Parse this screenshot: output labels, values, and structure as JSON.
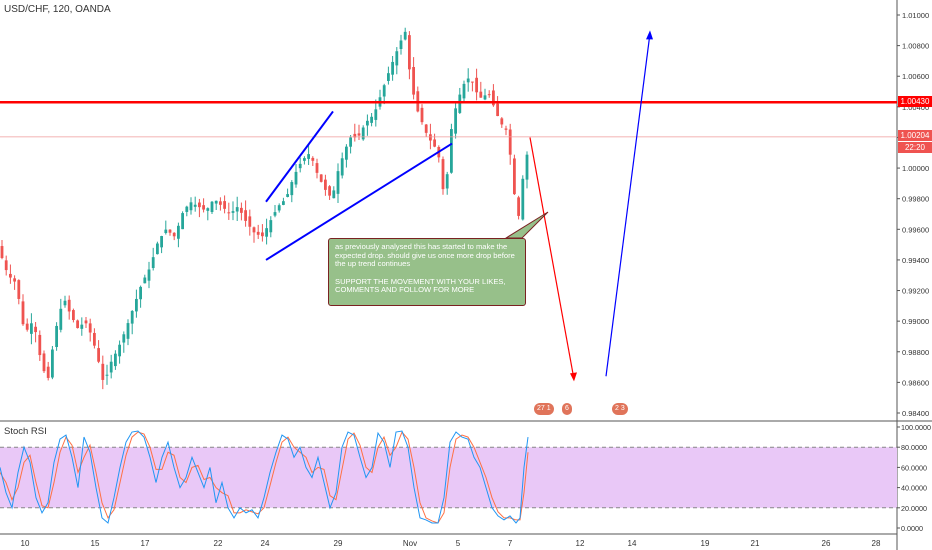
{
  "header": {
    "title": "USD/CHF, 120, OANDA"
  },
  "note": {
    "text1": "as previously analysed this has started to make the expected drop. should give us once more drop before the up trend continues",
    "text2": "SUPPORT THE MOVEMENT WITH YOUR LIKES, COMMENTS AND FOLLOW FOR MORE"
  },
  "events": [
    "27 1",
    "6",
    "2 3"
  ],
  "price_tags": {
    "resistance": "1.00430",
    "current": "1.00204",
    "countdown": "22:20"
  },
  "rsi": {
    "title": "Stoch RSI"
  },
  "colors": {
    "up": "#26a69a",
    "down": "#ef5350",
    "resistance": "#ff0000",
    "trend": "#0000ff",
    "projection_down": "#ff0000",
    "projection_up": "#0000ff",
    "rsi_band": "#e9c8f7",
    "k_line": "#2196f3",
    "d_line": "#ff7043"
  },
  "chart_data": [
    {
      "type": "candlestick",
      "title": "USD/CHF, 120, OANDA",
      "x_tick_labels": [
        "10",
        "15",
        "17",
        "22",
        "24",
        "29",
        "Nov",
        "5",
        "7",
        "12",
        "14",
        "19",
        "21",
        "26",
        "28"
      ],
      "y_tick_labels": [
        "1.01000",
        "1.00800",
        "1.00600",
        "1.00400",
        "1.00200",
        "1.00000",
        "0.99800",
        "0.99600",
        "0.99400",
        "0.99200",
        "0.99000",
        "0.98800",
        "0.98600",
        "0.98400"
      ],
      "ylim": [
        0.9834,
        1.0109
      ],
      "resistance_level": 1.0043,
      "current_price": 1.00204,
      "price_path": [
        [
          0,
          0.9945
        ],
        [
          8,
          0.993
        ],
        [
          16,
          0.9925
        ],
        [
          20,
          0.991
        ],
        [
          25,
          0.989
        ],
        [
          30,
          0.99
        ],
        [
          35,
          0.9895
        ],
        [
          42,
          0.987
        ],
        [
          48,
          0.9862
        ],
        [
          52,
          0.988
        ],
        [
          58,
          0.9902
        ],
        [
          64,
          0.9915
        ],
        [
          70,
          0.9905
        ],
        [
          78,
          0.9895
        ],
        [
          85,
          0.99
        ],
        [
          92,
          0.989
        ],
        [
          100,
          0.987
        ],
        [
          104,
          0.9858
        ],
        [
          110,
          0.9872
        ],
        [
          118,
          0.9882
        ],
        [
          126,
          0.9895
        ],
        [
          134,
          0.991
        ],
        [
          142,
          0.9925
        ],
        [
          150,
          0.9935
        ],
        [
          158,
          0.9952
        ],
        [
          166,
          0.996
        ],
        [
          175,
          0.9955
        ],
        [
          182,
          0.997
        ],
        [
          190,
          0.9978
        ],
        [
          198,
          0.9975
        ],
        [
          206,
          0.9972
        ],
        [
          214,
          0.998
        ],
        [
          222,
          0.9975
        ],
        [
          230,
          0.997
        ],
        [
          238,
          0.9975
        ],
        [
          246,
          0.9965
        ],
        [
          254,
          0.9958
        ],
        [
          262,
          0.9955
        ],
        [
          270,
          0.9965
        ],
        [
          278,
          0.9975
        ],
        [
          286,
          0.998
        ],
        [
          294,
          0.9995
        ],
        [
          302,
          1.0005
        ],
        [
          310,
          1.001
        ],
        [
          318,
          0.9995
        ],
        [
          326,
          0.9985
        ],
        [
          332,
          0.998
        ],
        [
          338,
          0.9998
        ],
        [
          344,
          1.001
        ],
        [
          350,
          1.002
        ],
        [
          358,
          1.002
        ],
        [
          366,
          1.003
        ],
        [
          374,
          1.0035
        ],
        [
          382,
          1.005
        ],
        [
          390,
          1.0065
        ],
        [
          396,
          1.0075
        ],
        [
          402,
          1.0085
        ],
        [
          406,
          1.009
        ],
        [
          410,
          1.006
        ],
        [
          416,
          1.004
        ],
        [
          422,
          1.003
        ],
        [
          428,
          1.002
        ],
        [
          434,
          1.0015
        ],
        [
          440,
          1.0005
        ],
        [
          444,
          0.998
        ],
        [
          448,
          1.0
        ],
        [
          452,
          1.003
        ],
        [
          458,
          1.0045
        ],
        [
          464,
          1.0055
        ],
        [
          470,
          1.006
        ],
        [
          476,
          1.005
        ],
        [
          482,
          1.0045
        ],
        [
          488,
          1.005
        ],
        [
          494,
          1.004
        ],
        [
          500,
          1.003
        ],
        [
          506,
          1.0025
        ],
        [
          510,
          1.001
        ],
        [
          514,
          0.9985
        ],
        [
          518,
          0.9965
        ],
        [
          522,
          0.999
        ],
        [
          526,
          1.0005
        ],
        [
          530,
          1.002
        ]
      ],
      "projection": [
        [
          530,
          1.002
        ],
        [
          574,
          0.9862
        ],
        [
          606,
          0.9864
        ],
        [
          650,
          1.0088
        ]
      ],
      "trend_lines": [
        [
          [
            266,
            0.9978
          ],
          [
            333,
            1.0037
          ]
        ],
        [
          [
            266,
            0.994
          ],
          [
            452,
            1.0016
          ]
        ]
      ]
    },
    {
      "type": "line",
      "title": "Stoch RSI",
      "y_tick_labels": [
        "100.0000",
        "80.0000",
        "60.0000",
        "40.0000",
        "20.0000",
        "0.0000"
      ],
      "ylim": [
        0,
        100
      ],
      "band": [
        20,
        80
      ],
      "k_points": [
        [
          0,
          60
        ],
        [
          6,
          35
        ],
        [
          12,
          20
        ],
        [
          18,
          55
        ],
        [
          24,
          80
        ],
        [
          30,
          65
        ],
        [
          36,
          30
        ],
        [
          42,
          15
        ],
        [
          48,
          25
        ],
        [
          54,
          65
        ],
        [
          60,
          88
        ],
        [
          66,
          92
        ],
        [
          72,
          70
        ],
        [
          78,
          40
        ],
        [
          84,
          90
        ],
        [
          90,
          75
        ],
        [
          96,
          40
        ],
        [
          102,
          10
        ],
        [
          108,
          5
        ],
        [
          114,
          30
        ],
        [
          120,
          60
        ],
        [
          126,
          85
        ],
        [
          132,
          95
        ],
        [
          138,
          96
        ],
        [
          144,
          90
        ],
        [
          150,
          70
        ],
        [
          156,
          45
        ],
        [
          162,
          70
        ],
        [
          168,
          85
        ],
        [
          174,
          60
        ],
        [
          180,
          40
        ],
        [
          186,
          50
        ],
        [
          192,
          70
        ],
        [
          198,
          55
        ],
        [
          204,
          40
        ],
        [
          210,
          60
        ],
        [
          216,
          25
        ],
        [
          222,
          45
        ],
        [
          228,
          20
        ],
        [
          234,
          10
        ],
        [
          240,
          20
        ],
        [
          246,
          15
        ],
        [
          252,
          18
        ],
        [
          258,
          10
        ],
        [
          264,
          30
        ],
        [
          270,
          55
        ],
        [
          276,
          75
        ],
        [
          282,
          92
        ],
        [
          288,
          88
        ],
        [
          294,
          70
        ],
        [
          300,
          80
        ],
        [
          306,
          60
        ],
        [
          312,
          50
        ],
        [
          318,
          70
        ],
        [
          324,
          45
        ],
        [
          330,
          20
        ],
        [
          336,
          35
        ],
        [
          342,
          80
        ],
        [
          348,
          95
        ],
        [
          354,
          92
        ],
        [
          360,
          70
        ],
        [
          366,
          50
        ],
        [
          372,
          60
        ],
        [
          378,
          94
        ],
        [
          384,
          85
        ],
        [
          390,
          60
        ],
        [
          396,
          95
        ],
        [
          402,
          96
        ],
        [
          408,
          80
        ],
        [
          414,
          40
        ],
        [
          420,
          10
        ],
        [
          426,
          8
        ],
        [
          432,
          5
        ],
        [
          438,
          5
        ],
        [
          444,
          30
        ],
        [
          450,
          85
        ],
        [
          456,
          95
        ],
        [
          462,
          90
        ],
        [
          468,
          88
        ],
        [
          474,
          70
        ],
        [
          480,
          60
        ],
        [
          486,
          40
        ],
        [
          492,
          20
        ],
        [
          498,
          12
        ],
        [
          504,
          8
        ],
        [
          510,
          12
        ],
        [
          516,
          5
        ],
        [
          520,
          10
        ],
        [
          524,
          60
        ],
        [
          528,
          90
        ]
      ],
      "d_points": [
        [
          0,
          55
        ],
        [
          6,
          45
        ],
        [
          12,
          28
        ],
        [
          18,
          40
        ],
        [
          24,
          65
        ],
        [
          30,
          72
        ],
        [
          36,
          45
        ],
        [
          42,
          22
        ],
        [
          48,
          20
        ],
        [
          54,
          45
        ],
        [
          60,
          75
        ],
        [
          66,
          90
        ],
        [
          72,
          82
        ],
        [
          78,
          55
        ],
        [
          84,
          70
        ],
        [
          90,
          82
        ],
        [
          96,
          55
        ],
        [
          102,
          25
        ],
        [
          108,
          10
        ],
        [
          114,
          18
        ],
        [
          120,
          45
        ],
        [
          126,
          72
        ],
        [
          132,
          90
        ],
        [
          138,
          95
        ],
        [
          144,
          93
        ],
        [
          150,
          80
        ],
        [
          156,
          58
        ],
        [
          162,
          58
        ],
        [
          168,
          75
        ],
        [
          174,
          72
        ],
        [
          180,
          50
        ],
        [
          186,
          45
        ],
        [
          192,
          60
        ],
        [
          198,
          62
        ],
        [
          204,
          48
        ],
        [
          210,
          50
        ],
        [
          216,
          40
        ],
        [
          222,
          35
        ],
        [
          228,
          32
        ],
        [
          234,
          15
        ],
        [
          240,
          15
        ],
        [
          246,
          18
        ],
        [
          252,
          16
        ],
        [
          258,
          14
        ],
        [
          264,
          20
        ],
        [
          270,
          42
        ],
        [
          276,
          65
        ],
        [
          282,
          85
        ],
        [
          288,
          90
        ],
        [
          294,
          80
        ],
        [
          300,
          75
        ],
        [
          306,
          70
        ],
        [
          312,
          55
        ],
        [
          318,
          60
        ],
        [
          324,
          58
        ],
        [
          330,
          32
        ],
        [
          336,
          28
        ],
        [
          342,
          58
        ],
        [
          348,
          88
        ],
        [
          354,
          94
        ],
        [
          360,
          82
        ],
        [
          366,
          60
        ],
        [
          372,
          55
        ],
        [
          378,
          80
        ],
        [
          384,
          90
        ],
        [
          390,
          72
        ],
        [
          396,
          80
        ],
        [
          402,
          95
        ],
        [
          408,
          88
        ],
        [
          414,
          60
        ],
        [
          420,
          25
        ],
        [
          426,
          10
        ],
        [
          432,
          7
        ],
        [
          438,
          5
        ],
        [
          444,
          15
        ],
        [
          450,
          60
        ],
        [
          456,
          88
        ],
        [
          462,
          92
        ],
        [
          468,
          90
        ],
        [
          474,
          80
        ],
        [
          480,
          65
        ],
        [
          486,
          50
        ],
        [
          492,
          30
        ],
        [
          498,
          16
        ],
        [
          504,
          10
        ],
        [
          510,
          10
        ],
        [
          516,
          8
        ],
        [
          520,
          8
        ],
        [
          524,
          35
        ],
        [
          528,
          75
        ]
      ]
    }
  ]
}
